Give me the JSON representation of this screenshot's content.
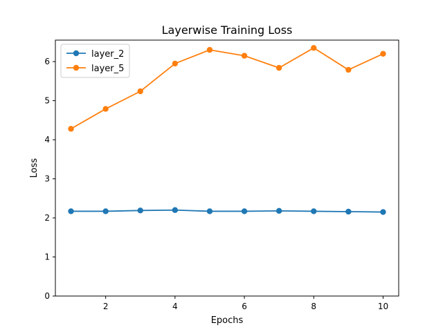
{
  "chart_data": {
    "type": "line",
    "title": "Layerwise Training Loss",
    "xlabel": "Epochs",
    "ylabel": "Loss",
    "xlim": [
      0.55,
      10.45
    ],
    "ylim": [
      0,
      6.55
    ],
    "xticks": [
      2,
      4,
      6,
      8,
      10
    ],
    "yticks": [
      0,
      1,
      2,
      3,
      4,
      5,
      6
    ],
    "grid": false,
    "legend_position": "top-left",
    "x": [
      1,
      2,
      3,
      4,
      5,
      6,
      7,
      8,
      9,
      10
    ],
    "series": [
      {
        "name": "layer_2",
        "color": "#1f77b4",
        "marker": "circle",
        "values": [
          2.17,
          2.17,
          2.19,
          2.2,
          2.17,
          2.17,
          2.18,
          2.17,
          2.16,
          2.15
        ]
      },
      {
        "name": "layer_5",
        "color": "#ff7f0e",
        "marker": "circle",
        "values": [
          4.28,
          4.79,
          5.24,
          5.95,
          6.3,
          6.15,
          5.84,
          6.35,
          5.79,
          6.2
        ]
      }
    ]
  }
}
